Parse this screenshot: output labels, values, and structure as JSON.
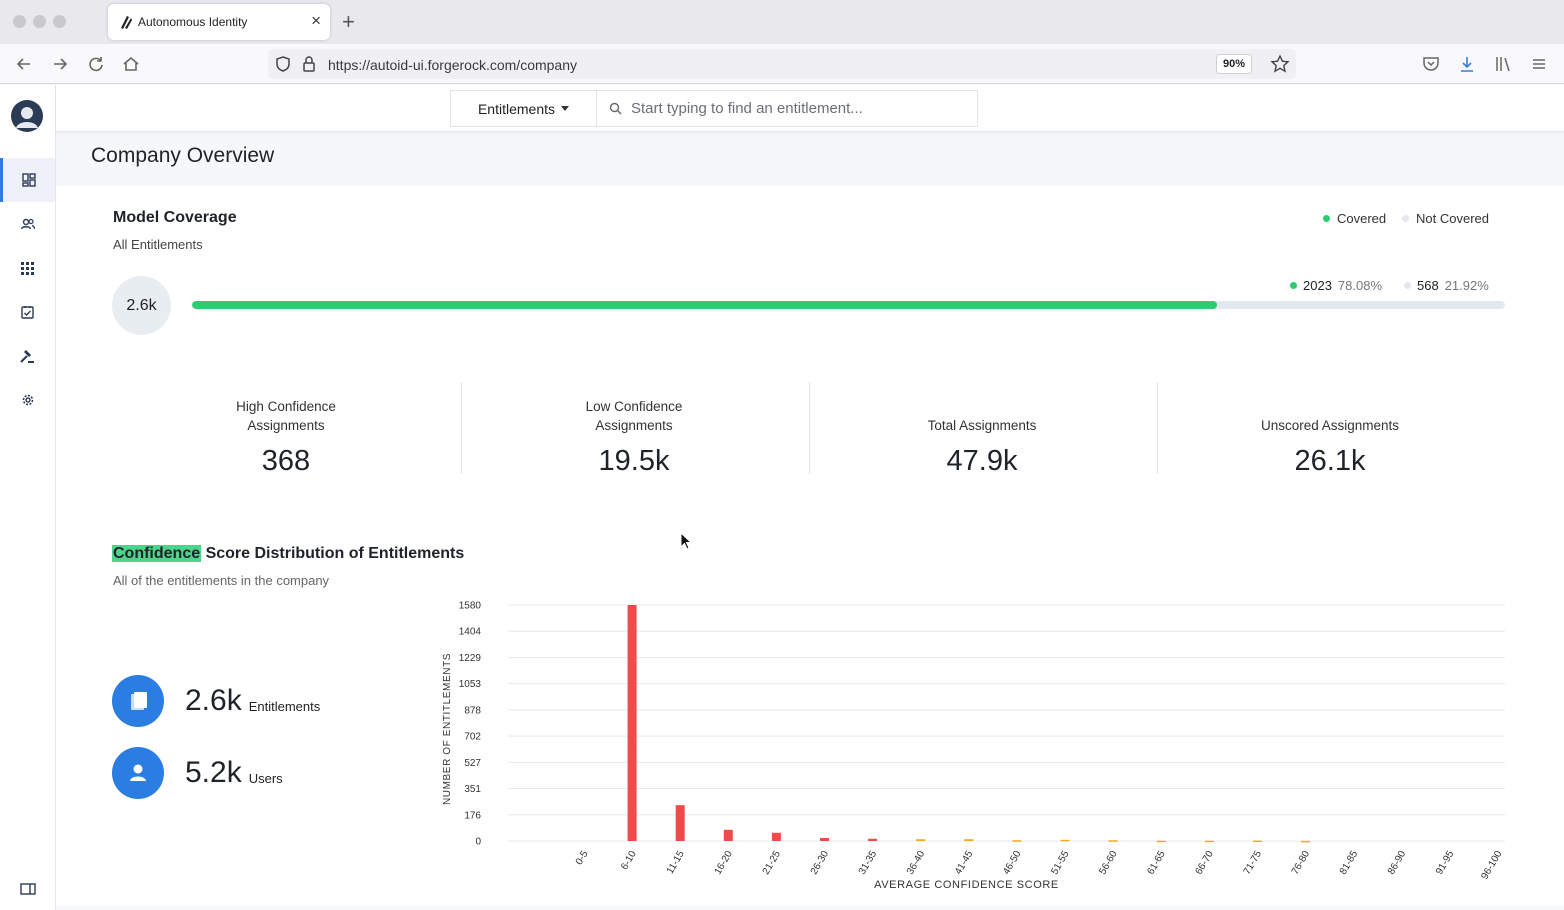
{
  "browser": {
    "tab_title": "Autonomous Identity",
    "url": "https://autoid-ui.forgerock.com/company",
    "zoom": "90%"
  },
  "search": {
    "dropdown_label": "Entitlements",
    "placeholder": "Start typing to find an entitlement..."
  },
  "sidebar": {
    "items": [
      "dashboard-icon",
      "users-icon",
      "apps-grid-icon",
      "checklist-icon",
      "gavel-icon",
      "gear-icon"
    ],
    "footer_icon": "sidebar-toggle-icon"
  },
  "page": {
    "title": "Company Overview"
  },
  "model_coverage": {
    "title": "Model Coverage",
    "subtitle": "All Entitlements",
    "legend_covered": "Covered",
    "legend_not_covered": "Not Covered",
    "total": "2.6k",
    "covered_count": "2023",
    "covered_pct": "78.08%",
    "covered_fraction": 0.7808,
    "not_covered_count": "568",
    "not_covered_pct": "21.92%",
    "colors": {
      "covered": "#2ecc71",
      "not_covered": "#e3e8ee"
    }
  },
  "stats": [
    {
      "label_line1": "High Confidence",
      "label_line2": "Assignments",
      "value": "368"
    },
    {
      "label_line1": "Low Confidence",
      "label_line2": "Assignments",
      "value": "19.5k"
    },
    {
      "label_line1": "",
      "label_line2": "Total Assignments",
      "value": "47.9k"
    },
    {
      "label_line1": "",
      "label_line2": "Unscored Assignments",
      "value": "26.1k"
    }
  ],
  "distribution": {
    "title_highlight": "Confidence",
    "title_rest": " Score Distribution of Entitlements",
    "subtitle": "All of the entitlements in the company",
    "entitlements_value": "2.6k",
    "entitlements_label": "Entitlements",
    "users_value": "5.2k",
    "users_label": "Users"
  },
  "chart_data": {
    "type": "bar",
    "xlabel": "AVERAGE CONFIDENCE SCORE",
    "ylabel": "NUMBER OF ENTITLEMENTS",
    "ylim": [
      0,
      1580
    ],
    "yticks": [
      "1580",
      "1404",
      "1229",
      "1053",
      "878",
      "702",
      "527",
      "351",
      "176",
      "0"
    ],
    "categories": [
      "0-5",
      "6-10",
      "11-15",
      "16-20",
      "21-25",
      "26-30",
      "31-35",
      "36-40",
      "41-45",
      "46-50",
      "51-55",
      "56-60",
      "61-65",
      "66-70",
      "71-75",
      "76-80",
      "81-85",
      "86-90",
      "91-95",
      "96-100"
    ],
    "values": [
      0,
      1580,
      240,
      75,
      55,
      20,
      15,
      12,
      12,
      5,
      8,
      5,
      2,
      2,
      3,
      1,
      0,
      0,
      0,
      0
    ],
    "colors": [
      "#f04b4b",
      "#f04b4b",
      "#f04b4b",
      "#f04b4b",
      "#f04b4b",
      "#f04b4b",
      "#f04b4b",
      "#f5a623",
      "#f5a623",
      "#f5a623",
      "#f5a623",
      "#f5a623",
      "#f5a623",
      "#f5a623",
      "#f5a623",
      "#f5a623",
      "#2ecc71",
      "#2ecc71",
      "#2ecc71",
      "#2ecc71"
    ],
    "grid": true
  }
}
